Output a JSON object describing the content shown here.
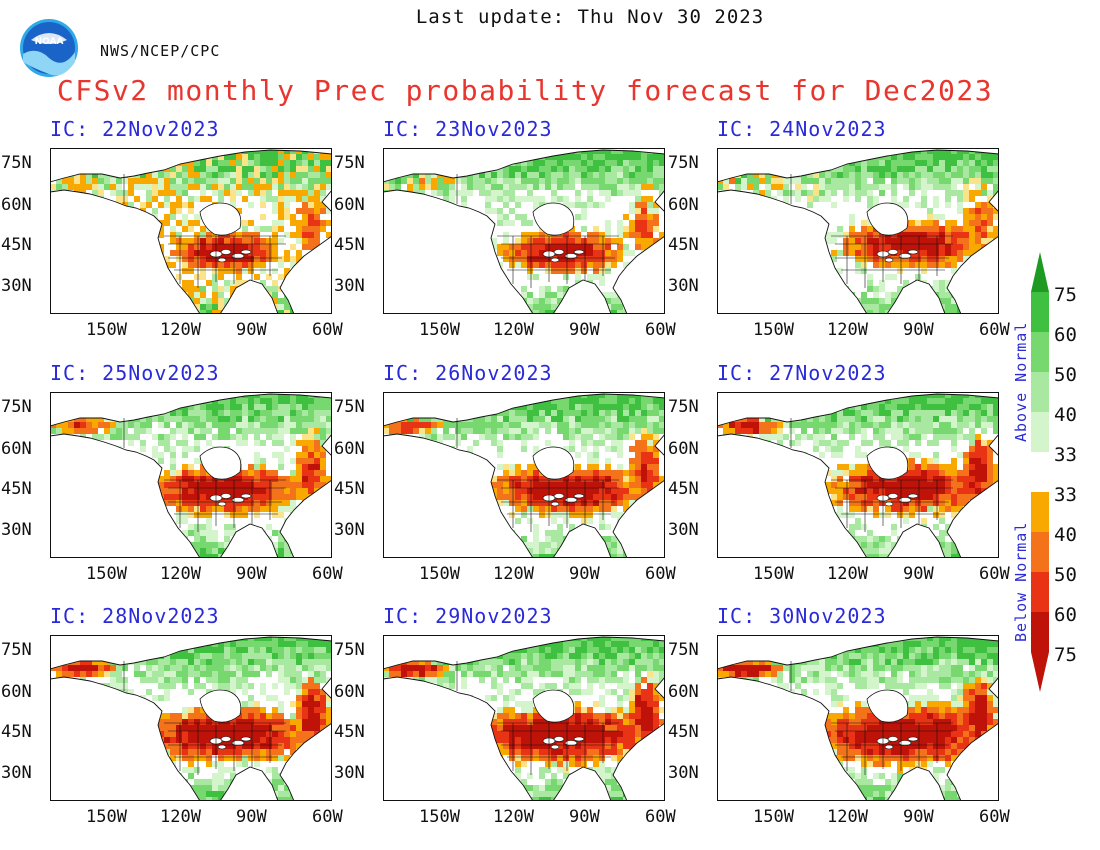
{
  "header": {
    "last_update": "Last update: Thu Nov 30 2023",
    "agency": "NWS/NCEP/CPC",
    "title": "CFSv2 monthly Prec probability forecast for Dec2023",
    "logo_text": "NOAA"
  },
  "panels": [
    {
      "ic": "IC: 22Nov2023",
      "pattern": 0
    },
    {
      "ic": "IC: 23Nov2023",
      "pattern": 1
    },
    {
      "ic": "IC: 24Nov2023",
      "pattern": 2
    },
    {
      "ic": "IC: 25Nov2023",
      "pattern": 3
    },
    {
      "ic": "IC: 26Nov2023",
      "pattern": 4
    },
    {
      "ic": "IC: 27Nov2023",
      "pattern": 5
    },
    {
      "ic": "IC: 28Nov2023",
      "pattern": 6
    },
    {
      "ic": "IC: 29Nov2023",
      "pattern": 7
    },
    {
      "ic": "IC: 30Nov2023",
      "pattern": 8
    }
  ],
  "axes": {
    "lat_labels": [
      "75N",
      "60N",
      "45N",
      "30N"
    ],
    "lon_labels": [
      "150W",
      "120W",
      "90W",
      "60W"
    ]
  },
  "legend": {
    "above_label": "Above Normal",
    "below_label": "Below Normal",
    "above": [
      {
        "value": "75",
        "color": "#1e9a23"
      },
      {
        "value": "60",
        "color": "#40c040"
      },
      {
        "value": "50",
        "color": "#78d870"
      },
      {
        "value": "40",
        "color": "#a8e8a0"
      },
      {
        "value": "33",
        "color": "#d4f5cc"
      }
    ],
    "below": [
      {
        "value": "33",
        "color": "#fbe38a"
      },
      {
        "value": "40",
        "color": "#f9a800"
      },
      {
        "value": "50",
        "color": "#f4731a"
      },
      {
        "value": "60",
        "color": "#e83414"
      },
      {
        "value": "75",
        "color": "#bf1208"
      }
    ]
  },
  "colors": {
    "title": "#e8352e",
    "panel_title": "#2a2ad8",
    "land_neutral": "#ffffff",
    "water": "#ffffff"
  }
}
